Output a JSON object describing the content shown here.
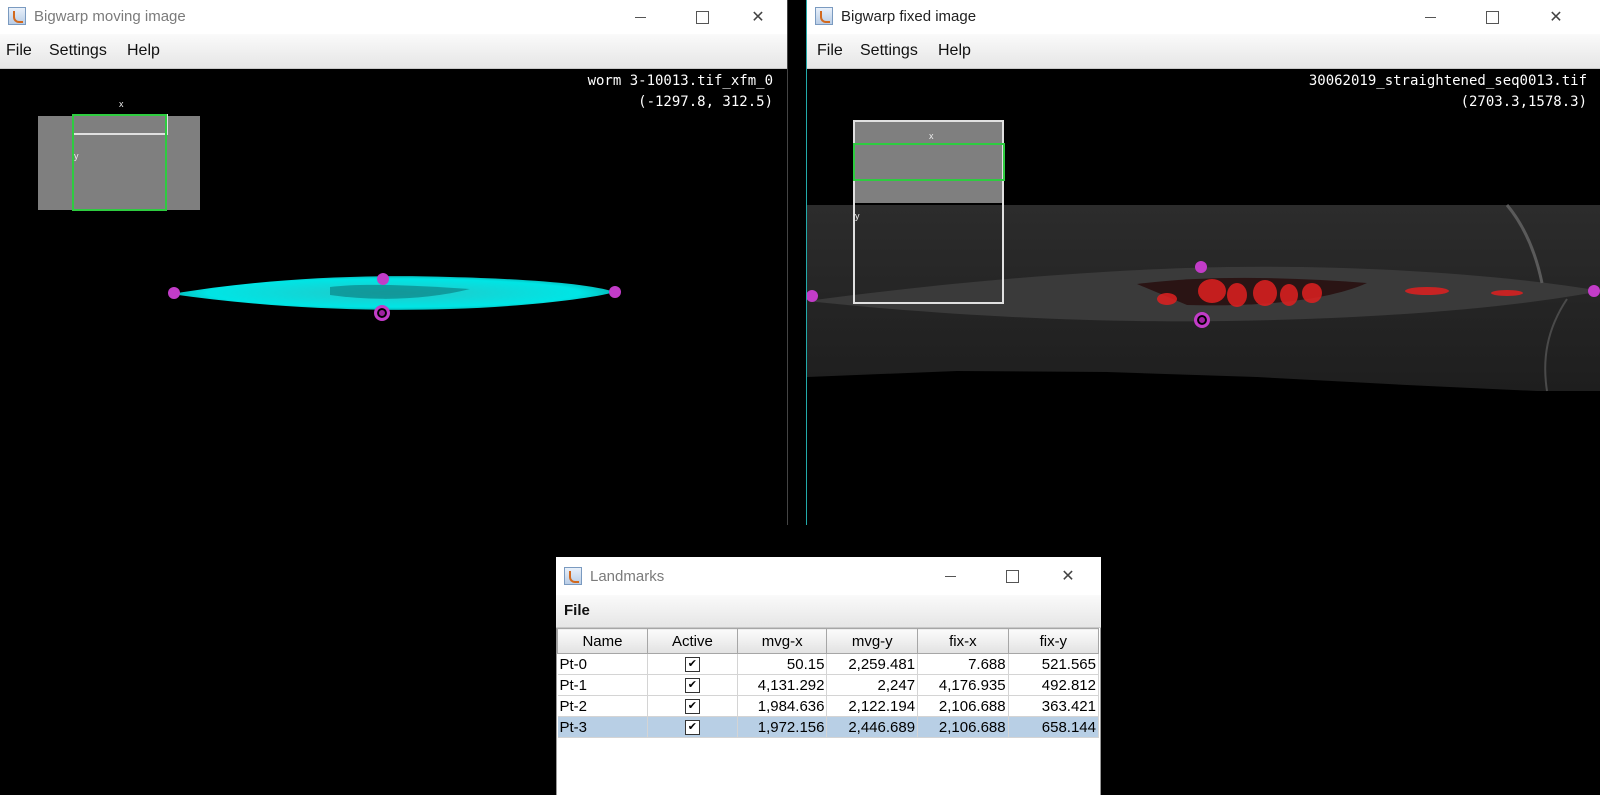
{
  "moving_window": {
    "title": "Bigwarp moving image",
    "menu": [
      "File",
      "Settings",
      "Help"
    ],
    "image_name": "worm 3-10013.tif_xfm_0",
    "coords": "(-1297.8, 312.5)",
    "nav_labels": {
      "x": "x",
      "y": "y"
    }
  },
  "fixed_window": {
    "title": "Bigwarp fixed image",
    "menu": [
      "File",
      "Settings",
      "Help"
    ],
    "image_name": "30062019_straightened_seq0013.tif",
    "coords": "(2703.3,1578.3)",
    "nav_labels": {
      "x": "x",
      "y": "y"
    }
  },
  "landmarks_window": {
    "title": "Landmarks",
    "menu": [
      "File"
    ],
    "columns": [
      "Name",
      "Active",
      "mvg-x",
      "mvg-y",
      "fix-x",
      "fix-y"
    ],
    "rows": [
      {
        "name": "Pt-0",
        "active": true,
        "mvg_x": "50.15",
        "mvg_y": "2,259.481",
        "fix_x": "7.688",
        "fix_y": "521.565",
        "selected": false
      },
      {
        "name": "Pt-1",
        "active": true,
        "mvg_x": "4,131.292",
        "mvg_y": "2,247",
        "fix_x": "4,176.935",
        "fix_y": "492.812",
        "selected": false
      },
      {
        "name": "Pt-2",
        "active": true,
        "mvg_x": "1,984.636",
        "mvg_y": "2,122.194",
        "fix_x": "2,106.688",
        "fix_y": "363.421",
        "selected": false
      },
      {
        "name": "Pt-3",
        "active": true,
        "mvg_x": "1,972.156",
        "mvg_y": "2,446.689",
        "fix_x": "2,106.688",
        "fix_y": "658.144",
        "selected": true
      }
    ]
  },
  "colors": {
    "landmark": "#c23cc8",
    "moving_channel": "#00e5e5",
    "fixed_channel": "#e02020",
    "nav_highlight": "#2ecc40"
  },
  "icons": {
    "app": "java-coffee-icon",
    "minimize": "minimize-icon",
    "maximize": "maximize-icon",
    "close": "close-icon",
    "checkbox": "checkbox-checked-icon"
  }
}
